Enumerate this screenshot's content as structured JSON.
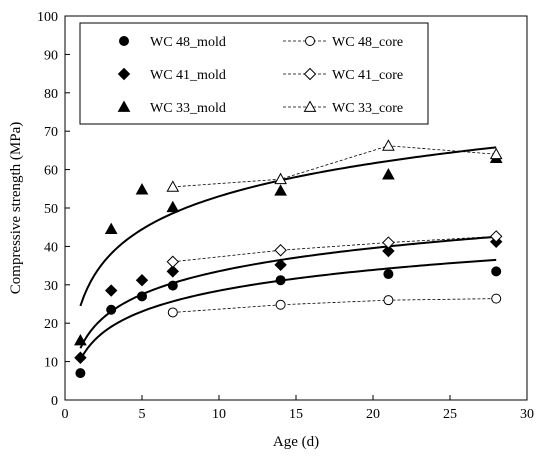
{
  "chart_data": {
    "type": "scatter",
    "title": "",
    "xlabel": "Age (d)",
    "ylabel": "Compressive strength (MPa)",
    "xlim": [
      0,
      30
    ],
    "ylim": [
      0,
      100
    ],
    "xticks": [
      0,
      5,
      10,
      15,
      20,
      25,
      30
    ],
    "yticks": [
      0,
      10,
      20,
      30,
      40,
      50,
      60,
      70,
      80,
      90,
      100
    ],
    "grid": false,
    "legend_position": "top-left",
    "series": [
      {
        "name": "WC 48_mold",
        "marker": "circle",
        "filled": true,
        "line": "none",
        "x": [
          1,
          3,
          5,
          7,
          14,
          21,
          28
        ],
        "y": [
          7.0,
          23.5,
          27.0,
          29.8,
          31.2,
          32.8,
          33.5
        ]
      },
      {
        "name": "WC 48_core",
        "marker": "circle",
        "filled": false,
        "line": "dashed",
        "x": [
          7,
          14,
          21,
          28
        ],
        "y": [
          22.8,
          24.8,
          26.0,
          26.4
        ]
      },
      {
        "name": "WC 41_mold",
        "marker": "diamond",
        "filled": true,
        "line": "none",
        "x": [
          1,
          3,
          5,
          7,
          14,
          21,
          28
        ],
        "y": [
          11.0,
          28.5,
          31.2,
          33.5,
          35.2,
          38.8,
          41.2
        ]
      },
      {
        "name": "WC 41_core",
        "marker": "diamond",
        "filled": false,
        "line": "dashed",
        "x": [
          7,
          14,
          21,
          28
        ],
        "y": [
          36.0,
          39.0,
          41.0,
          42.6
        ]
      },
      {
        "name": "WC 33_mold",
        "marker": "triangle",
        "filled": true,
        "line": "none",
        "x": [
          1,
          3,
          5,
          7,
          14,
          21,
          28
        ],
        "y": [
          15.5,
          44.5,
          54.8,
          50.2,
          54.5,
          58.7,
          63.0
        ]
      },
      {
        "name": "WC 33_core",
        "marker": "triangle",
        "filled": false,
        "line": "dashed",
        "x": [
          7,
          14,
          21,
          28
        ],
        "y": [
          55.5,
          57.5,
          66.2,
          64.0
        ]
      }
    ],
    "trend_curves": [
      {
        "curve_type": "logarithmic",
        "x_start": 1,
        "x_end": 28,
        "y_start": 10.5,
        "y_end": 36.5
      },
      {
        "curve_type": "logarithmic",
        "x_start": 1,
        "x_end": 28,
        "y_start": 13.5,
        "y_end": 42.5
      },
      {
        "curve_type": "logarithmic",
        "x_start": 1,
        "x_end": 28,
        "y_start": 24.5,
        "y_end": 65.8
      }
    ],
    "colors": {
      "ink": "#000000",
      "background": "#ffffff"
    }
  }
}
